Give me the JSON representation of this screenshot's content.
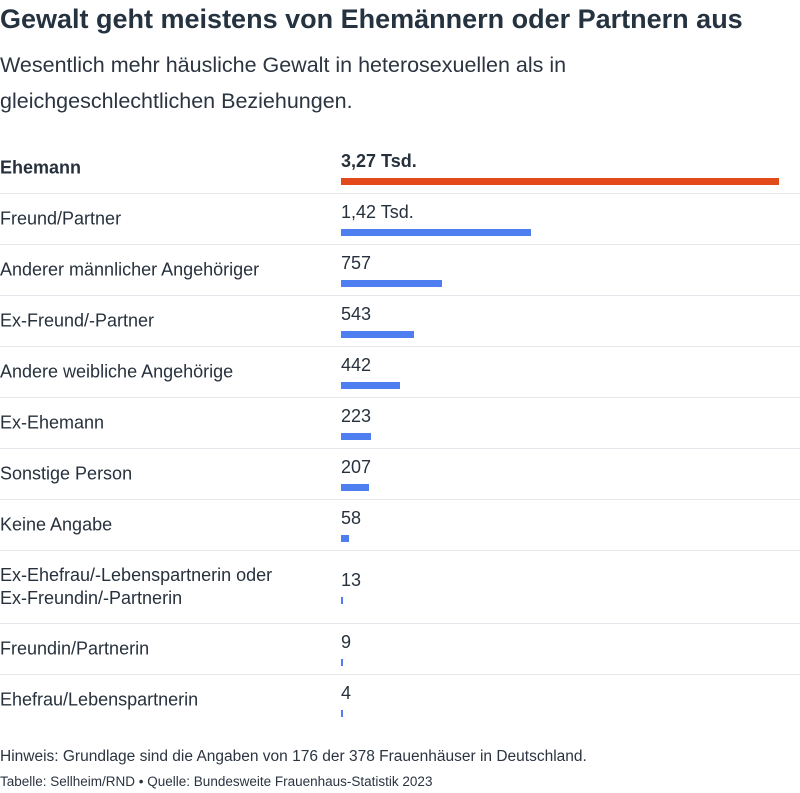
{
  "header": {
    "title": "Gewalt geht meistens von Ehemännern oder Partnern aus",
    "subtitle": "Wesentlich mehr häusliche Gewalt in heterosexuellen als in gleichgeschlechtlichen Beziehungen."
  },
  "chart_data": {
    "type": "bar",
    "orientation": "horizontal",
    "categories": [
      "Ehemann",
      "Freund/Partner",
      "Anderer männlicher Angehöriger",
      "Ex-Freund/-Partner",
      "Andere weibliche Angehörige",
      "Ex-Ehemann",
      "Sonstige Person",
      "Keine Angabe",
      "Ex-Ehefrau/-Lebenspartnerin oder Ex-Freundin/-Partnerin",
      "Freundin/Partnerin",
      "Ehefrau/Lebenspartnerin"
    ],
    "values": [
      3270,
      1420,
      757,
      543,
      442,
      223,
      207,
      58,
      13,
      9,
      4
    ],
    "value_labels": [
      "3,27 Tsd.",
      "1,42 Tsd.",
      "757",
      "543",
      "442",
      "223",
      "207",
      "58",
      "13",
      "9",
      "4"
    ],
    "highlight_index": 0,
    "colors": {
      "highlight": "#e24a1c",
      "default": "#4e7ef0"
    },
    "xlim": [
      0,
      3270
    ]
  },
  "footer": {
    "note": "Hinweis: Grundlage sind die Angaben von 176 der 378 Frauenhäuser in Deutschland.",
    "source": "Tabelle: Sellheim/RND • Quelle: Bundesweite Frauenhaus-Statistik 2023"
  }
}
